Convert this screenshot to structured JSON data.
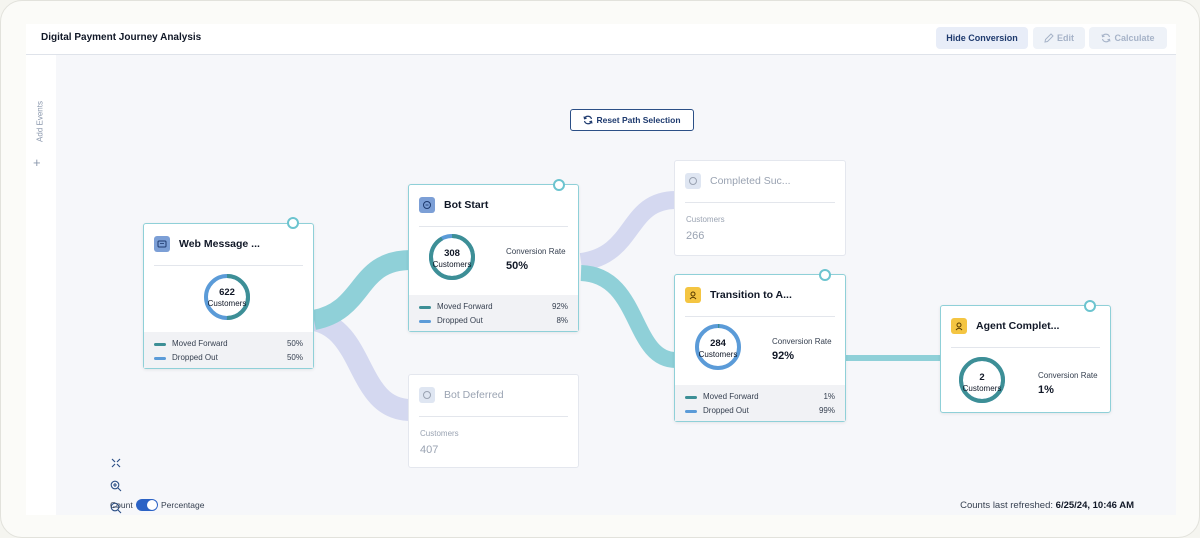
{
  "header": {
    "title": "Digital Payment Journey Analysis",
    "hide_conversion_label": "Hide Conversion",
    "edit_label": "Edit",
    "calculate_label": "Calculate"
  },
  "sidebar": {
    "add_events_label": "Add Events",
    "plus": "+"
  },
  "reset_label": "Reset Path Selection",
  "customers_label": "Customers",
  "conversion_rate_label": "Conversion Rate",
  "moved_forward_label": "Moved Forward",
  "dropped_out_label": "Dropped Out",
  "nodes": {
    "web_message": {
      "name": "Web Message ...",
      "count": "622",
      "moved_forward": "50%",
      "dropped_out": "50%",
      "ring_forward_fraction": 0.5
    },
    "bot_start": {
      "name": "Bot Start",
      "count": "308",
      "conversion_rate": "50%",
      "moved_forward": "92%",
      "dropped_out": "8%",
      "ring_forward_fraction": 0.92
    },
    "completed": {
      "name": "Completed Suc...",
      "count": "266"
    },
    "bot_deferred": {
      "name": "Bot Deferred",
      "count": "407"
    },
    "transition": {
      "name": "Transition to A...",
      "count": "284",
      "conversion_rate": "92%",
      "moved_forward": "1%",
      "dropped_out": "99%",
      "ring_forward_fraction": 0.01
    },
    "agent_complete": {
      "name": "Agent Complet...",
      "count": "2",
      "conversion_rate": "1%",
      "ring_forward_fraction": 1.0
    }
  },
  "footer": {
    "count_label": "Count",
    "percentage_label": "Percentage",
    "refreshed_label": "Counts last refreshed:",
    "refreshed_value": "6/25/24, 10:46 AM"
  },
  "colors": {
    "forward": "#3d8f96",
    "dropped": "#5b9bd8",
    "flow_main": "#8fd0d8",
    "flow_faded": "#d4d8f0",
    "accent": "#2b4f86"
  }
}
